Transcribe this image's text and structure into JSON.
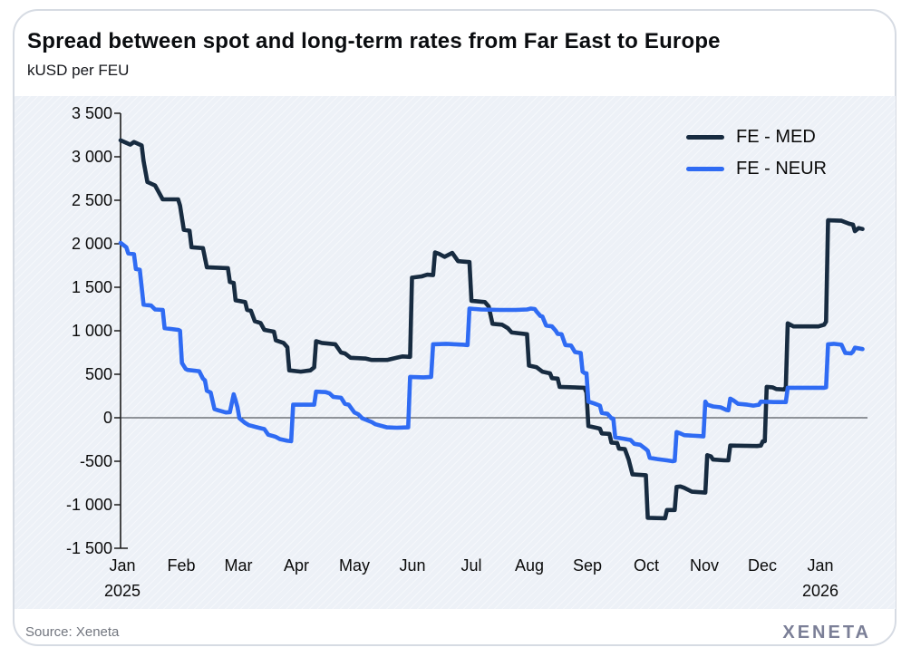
{
  "header": {
    "title": "Spread between spot and long-term rates from Far East to Europe",
    "subtitle": "kUSD per FEU"
  },
  "footer": {
    "source": "Source: Xeneta",
    "logo": "XENETA"
  },
  "colors": {
    "med": "#172b40",
    "neur": "#2f6bf3",
    "panel": "#edf1f7",
    "axis": "#1c1c1c"
  },
  "chart_data": {
    "type": "line",
    "title": "Spread between spot and long-term rates from Far East to Europe",
    "ylabel": "kUSD per FEU",
    "ylim": [
      -1500,
      3500
    ],
    "grid": "zero-line-only",
    "legend_position": "top-right",
    "yticks": [
      {
        "v": 3500,
        "label": "3 500"
      },
      {
        "v": 3000,
        "label": "3 000"
      },
      {
        "v": 2500,
        "label": "2 500"
      },
      {
        "v": 2000,
        "label": "2 000"
      },
      {
        "v": 1500,
        "label": "1 500"
      },
      {
        "v": 1000,
        "label": "1 000"
      },
      {
        "v": 500,
        "label": "500"
      },
      {
        "v": 0,
        "label": "0"
      },
      {
        "v": -500,
        "label": "-500"
      },
      {
        "v": -1000,
        "label": "-1 000"
      },
      {
        "v": -1500,
        "label": "-1 500"
      }
    ],
    "xticks": [
      {
        "date": "2025-01-01",
        "label": "Jan",
        "sublabel": "2025"
      },
      {
        "date": "2025-02-01",
        "label": "Feb"
      },
      {
        "date": "2025-03-01",
        "label": "Mar"
      },
      {
        "date": "2025-04-01",
        "label": "Apr"
      },
      {
        "date": "2025-05-01",
        "label": "May"
      },
      {
        "date": "2025-06-01",
        "label": "Jun"
      },
      {
        "date": "2025-07-01",
        "label": "Jul"
      },
      {
        "date": "2025-08-01",
        "label": "Aug"
      },
      {
        "date": "2025-09-01",
        "label": "Sep"
      },
      {
        "date": "2025-10-01",
        "label": "Oct"
      },
      {
        "date": "2025-11-01",
        "label": "Nov"
      },
      {
        "date": "2025-12-01",
        "label": "Dec"
      },
      {
        "date": "2026-01-01",
        "label": "Jan",
        "sublabel": "2026"
      }
    ],
    "series": [
      {
        "name": "FE - MED",
        "color": "#172b40",
        "points": [
          [
            "2025-01-01",
            3190
          ],
          [
            "2025-01-04",
            3160
          ],
          [
            "2025-01-06",
            3140
          ],
          [
            "2025-01-08",
            3170
          ],
          [
            "2025-01-12",
            3130
          ],
          [
            "2025-01-13",
            2950
          ],
          [
            "2025-01-15",
            2710
          ],
          [
            "2025-01-19",
            2670
          ],
          [
            "2025-01-23",
            2510
          ],
          [
            "2025-01-31",
            2510
          ],
          [
            "2025-02-01",
            2440
          ],
          [
            "2025-02-03",
            2160
          ],
          [
            "2025-02-06",
            2150
          ],
          [
            "2025-02-07",
            1960
          ],
          [
            "2025-02-13",
            1950
          ],
          [
            "2025-02-15",
            1730
          ],
          [
            "2025-02-26",
            1720
          ],
          [
            "2025-02-27",
            1560
          ],
          [
            "2025-03-01",
            1550
          ],
          [
            "2025-03-02",
            1350
          ],
          [
            "2025-03-07",
            1330
          ],
          [
            "2025-03-08",
            1240
          ],
          [
            "2025-03-10",
            1230
          ],
          [
            "2025-03-12",
            1110
          ],
          [
            "2025-03-15",
            1090
          ],
          [
            "2025-03-17",
            1010
          ],
          [
            "2025-03-22",
            990
          ],
          [
            "2025-03-23",
            890
          ],
          [
            "2025-03-27",
            860
          ],
          [
            "2025-03-29",
            810
          ],
          [
            "2025-03-30",
            545
          ],
          [
            "2025-04-05",
            530
          ],
          [
            "2025-04-10",
            545
          ],
          [
            "2025-04-12",
            580
          ],
          [
            "2025-04-13",
            880
          ],
          [
            "2025-04-16",
            860
          ],
          [
            "2025-04-23",
            845
          ],
          [
            "2025-04-26",
            750
          ],
          [
            "2025-04-28",
            740
          ],
          [
            "2025-05-01",
            690
          ],
          [
            "2025-05-09",
            680
          ],
          [
            "2025-05-12",
            665
          ],
          [
            "2025-05-20",
            665
          ],
          [
            "2025-05-25",
            690
          ],
          [
            "2025-05-28",
            705
          ],
          [
            "2025-06-01",
            700
          ],
          [
            "2025-06-02",
            1610
          ],
          [
            "2025-06-07",
            1625
          ],
          [
            "2025-06-10",
            1645
          ],
          [
            "2025-06-13",
            1640
          ],
          [
            "2025-06-14",
            1900
          ],
          [
            "2025-06-16",
            1885
          ],
          [
            "2025-06-19",
            1850
          ],
          [
            "2025-06-23",
            1895
          ],
          [
            "2025-06-26",
            1800
          ],
          [
            "2025-07-02",
            1790
          ],
          [
            "2025-07-03",
            1345
          ],
          [
            "2025-07-10",
            1330
          ],
          [
            "2025-07-12",
            1280
          ],
          [
            "2025-07-14",
            1080
          ],
          [
            "2025-07-19",
            1070
          ],
          [
            "2025-07-22",
            1030
          ],
          [
            "2025-07-24",
            980
          ],
          [
            "2025-08-01",
            960
          ],
          [
            "2025-08-02",
            600
          ],
          [
            "2025-08-06",
            580
          ],
          [
            "2025-08-09",
            530
          ],
          [
            "2025-08-13",
            510
          ],
          [
            "2025-08-14",
            455
          ],
          [
            "2025-08-17",
            450
          ],
          [
            "2025-08-18",
            355
          ],
          [
            "2025-08-31",
            345
          ],
          [
            "2025-09-01",
            290
          ],
          [
            "2025-09-02",
            -95
          ],
          [
            "2025-09-06",
            -115
          ],
          [
            "2025-09-08",
            -125
          ],
          [
            "2025-09-09",
            -180
          ],
          [
            "2025-09-13",
            -185
          ],
          [
            "2025-09-14",
            -285
          ],
          [
            "2025-09-17",
            -290
          ],
          [
            "2025-09-18",
            -355
          ],
          [
            "2025-09-21",
            -360
          ],
          [
            "2025-09-23",
            -480
          ],
          [
            "2025-09-25",
            -650
          ],
          [
            "2025-10-02",
            -660
          ],
          [
            "2025-10-03",
            -1150
          ],
          [
            "2025-10-12",
            -1155
          ],
          [
            "2025-10-13",
            -1060
          ],
          [
            "2025-10-17",
            -1060
          ],
          [
            "2025-10-18",
            -795
          ],
          [
            "2025-10-20",
            -790
          ],
          [
            "2025-10-22",
            -805
          ],
          [
            "2025-10-26",
            -850
          ],
          [
            "2025-11-02",
            -860
          ],
          [
            "2025-11-03",
            -430
          ],
          [
            "2025-11-05",
            -445
          ],
          [
            "2025-11-06",
            -480
          ],
          [
            "2025-11-12",
            -490
          ],
          [
            "2025-11-14",
            -490
          ],
          [
            "2025-11-15",
            -320
          ],
          [
            "2025-11-29",
            -325
          ],
          [
            "2025-12-01",
            -320
          ],
          [
            "2025-12-02",
            -270
          ],
          [
            "2025-12-03",
            -270
          ],
          [
            "2025-12-04",
            355
          ],
          [
            "2025-12-07",
            350
          ],
          [
            "2025-12-09",
            330
          ],
          [
            "2025-12-13",
            325
          ],
          [
            "2025-12-14",
            350
          ],
          [
            "2025-12-15",
            1085
          ],
          [
            "2025-12-18",
            1050
          ],
          [
            "2025-12-31",
            1050
          ],
          [
            "2026-01-03",
            1070
          ],
          [
            "2026-01-04",
            1105
          ],
          [
            "2026-01-05",
            2270
          ],
          [
            "2026-01-12",
            2265
          ],
          [
            "2026-01-16",
            2230
          ],
          [
            "2026-01-18",
            2220
          ],
          [
            "2026-01-19",
            2145
          ],
          [
            "2026-01-21",
            2180
          ],
          [
            "2026-01-23",
            2170
          ]
        ]
      },
      {
        "name": "FE - NEUR",
        "color": "#2f6bf3",
        "points": [
          [
            "2025-01-01",
            2010
          ],
          [
            "2025-01-04",
            1960
          ],
          [
            "2025-01-05",
            1890
          ],
          [
            "2025-01-08",
            1880
          ],
          [
            "2025-01-09",
            1710
          ],
          [
            "2025-01-11",
            1700
          ],
          [
            "2025-01-13",
            1300
          ],
          [
            "2025-01-17",
            1290
          ],
          [
            "2025-01-19",
            1245
          ],
          [
            "2025-01-23",
            1240
          ],
          [
            "2025-01-24",
            1030
          ],
          [
            "2025-01-31",
            1010
          ],
          [
            "2025-02-01",
            1000
          ],
          [
            "2025-02-02",
            630
          ],
          [
            "2025-02-04",
            560
          ],
          [
            "2025-02-05",
            550
          ],
          [
            "2025-02-11",
            535
          ],
          [
            "2025-02-13",
            450
          ],
          [
            "2025-02-14",
            430
          ],
          [
            "2025-02-15",
            310
          ],
          [
            "2025-02-17",
            290
          ],
          [
            "2025-02-19",
            100
          ],
          [
            "2025-02-21",
            85
          ],
          [
            "2025-02-25",
            60
          ],
          [
            "2025-02-27",
            65
          ],
          [
            "2025-03-01",
            270
          ],
          [
            "2025-03-02",
            200
          ],
          [
            "2025-03-03",
            120
          ],
          [
            "2025-03-04",
            -5
          ],
          [
            "2025-03-07",
            -60
          ],
          [
            "2025-03-09",
            -85
          ],
          [
            "2025-03-14",
            -115
          ],
          [
            "2025-03-17",
            -130
          ],
          [
            "2025-03-19",
            -195
          ],
          [
            "2025-03-23",
            -220
          ],
          [
            "2025-03-25",
            -245
          ],
          [
            "2025-03-29",
            -265
          ],
          [
            "2025-03-31",
            -270
          ],
          [
            "2025-04-01",
            150
          ],
          [
            "2025-04-12",
            150
          ],
          [
            "2025-04-13",
            300
          ],
          [
            "2025-04-18",
            295
          ],
          [
            "2025-04-20",
            280
          ],
          [
            "2025-04-22",
            240
          ],
          [
            "2025-04-26",
            230
          ],
          [
            "2025-04-28",
            160
          ],
          [
            "2025-04-30",
            150
          ],
          [
            "2025-05-03",
            60
          ],
          [
            "2025-05-05",
            40
          ],
          [
            "2025-05-07",
            -5
          ],
          [
            "2025-05-12",
            -50
          ],
          [
            "2025-05-14",
            -75
          ],
          [
            "2025-05-20",
            -110
          ],
          [
            "2025-05-25",
            -115
          ],
          [
            "2025-05-31",
            -110
          ],
          [
            "2025-06-01",
            470
          ],
          [
            "2025-06-08",
            465
          ],
          [
            "2025-06-12",
            470
          ],
          [
            "2025-06-13",
            845
          ],
          [
            "2025-06-20",
            850
          ],
          [
            "2025-06-29",
            840
          ],
          [
            "2025-07-01",
            835
          ],
          [
            "2025-07-02",
            1255
          ],
          [
            "2025-07-08",
            1245
          ],
          [
            "2025-07-18",
            1240
          ],
          [
            "2025-07-26",
            1240
          ],
          [
            "2025-08-01",
            1245
          ],
          [
            "2025-08-03",
            1255
          ],
          [
            "2025-08-05",
            1250
          ],
          [
            "2025-08-06",
            1220
          ],
          [
            "2025-08-08",
            1170
          ],
          [
            "2025-08-09",
            1165
          ],
          [
            "2025-08-11",
            1060
          ],
          [
            "2025-08-14",
            1050
          ],
          [
            "2025-08-16",
            1000
          ],
          [
            "2025-08-17",
            965
          ],
          [
            "2025-08-19",
            960
          ],
          [
            "2025-08-21",
            835
          ],
          [
            "2025-08-24",
            830
          ],
          [
            "2025-08-26",
            755
          ],
          [
            "2025-08-29",
            745
          ],
          [
            "2025-08-30",
            530
          ],
          [
            "2025-08-31",
            515
          ],
          [
            "2025-09-01",
            510
          ],
          [
            "2025-09-02",
            185
          ],
          [
            "2025-09-05",
            165
          ],
          [
            "2025-09-08",
            140
          ],
          [
            "2025-09-09",
            55
          ],
          [
            "2025-09-12",
            45
          ],
          [
            "2025-09-14",
            -5
          ],
          [
            "2025-09-15",
            -10
          ],
          [
            "2025-09-16",
            -225
          ],
          [
            "2025-09-20",
            -240
          ],
          [
            "2025-09-24",
            -255
          ],
          [
            "2025-09-26",
            -300
          ],
          [
            "2025-09-29",
            -310
          ],
          [
            "2025-10-02",
            -360
          ],
          [
            "2025-10-03",
            -380
          ],
          [
            "2025-10-04",
            -460
          ],
          [
            "2025-10-08",
            -475
          ],
          [
            "2025-10-13",
            -490
          ],
          [
            "2025-10-16",
            -500
          ],
          [
            "2025-10-17",
            -495
          ],
          [
            "2025-10-18",
            -165
          ],
          [
            "2025-10-20",
            -180
          ],
          [
            "2025-10-22",
            -200
          ],
          [
            "2025-10-30",
            -210
          ],
          [
            "2025-11-01",
            -215
          ],
          [
            "2025-11-02",
            185
          ],
          [
            "2025-11-03",
            150
          ],
          [
            "2025-11-06",
            130
          ],
          [
            "2025-11-10",
            120
          ],
          [
            "2025-11-13",
            90
          ],
          [
            "2025-11-14",
            85
          ],
          [
            "2025-11-15",
            220
          ],
          [
            "2025-11-17",
            195
          ],
          [
            "2025-11-19",
            160
          ],
          [
            "2025-11-24",
            150
          ],
          [
            "2025-11-27",
            140
          ],
          [
            "2025-11-30",
            150
          ],
          [
            "2025-12-01",
            185
          ],
          [
            "2025-12-08",
            180
          ],
          [
            "2025-12-14",
            180
          ],
          [
            "2025-12-15",
            345
          ],
          [
            "2025-12-25",
            345
          ],
          [
            "2026-01-03",
            345
          ],
          [
            "2026-01-04",
            350
          ],
          [
            "2026-01-05",
            845
          ],
          [
            "2026-01-08",
            850
          ],
          [
            "2026-01-12",
            840
          ],
          [
            "2026-01-14",
            745
          ],
          [
            "2026-01-17",
            740
          ],
          [
            "2026-01-18",
            760
          ],
          [
            "2026-01-19",
            805
          ],
          [
            "2026-01-23",
            790
          ]
        ]
      }
    ]
  }
}
